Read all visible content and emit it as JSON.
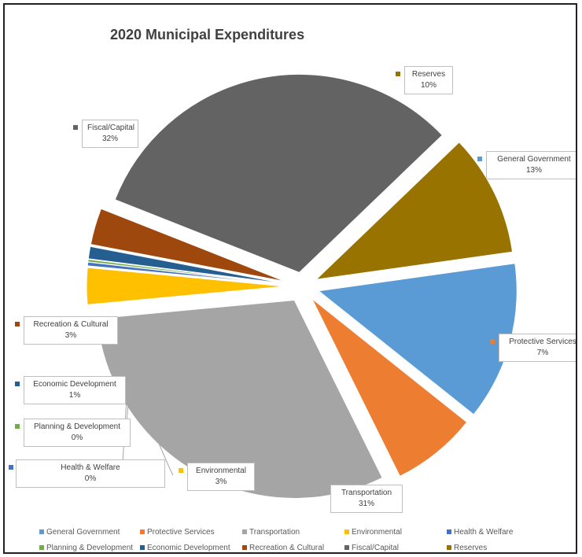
{
  "chart_data": {
    "type": "pie",
    "title": "2020 Municipal Expenditures",
    "exploded": true,
    "legend_position": "bottom",
    "slices": [
      {
        "name": "General Government",
        "label": "General Government",
        "pct_label": "13%",
        "value": 13,
        "color": "#5b9bd5"
      },
      {
        "name": "Protective Services",
        "label": "Protective Services",
        "pct_label": "7%",
        "value": 7,
        "color": "#ed7d31"
      },
      {
        "name": "Transportation",
        "label": "Transportation",
        "pct_label": "31%",
        "value": 31,
        "color": "#a5a5a5"
      },
      {
        "name": "Environmental",
        "label": "Environmental",
        "pct_label": "3%",
        "value": 3,
        "color": "#ffc000"
      },
      {
        "name": "Health & Welfare",
        "label": "Health & Welfare",
        "pct_label": "0%",
        "value": 0.3,
        "color": "#4472c4"
      },
      {
        "name": "Planning & Development",
        "label": "Planning & Development",
        "pct_label": "0%",
        "value": 0.2,
        "color": "#70ad47"
      },
      {
        "name": "Economic Development",
        "label": "Economic Development",
        "pct_label": "1%",
        "value": 1,
        "color": "#255e91"
      },
      {
        "name": "Recreation & Cultural",
        "label": "Recreation & Cultural",
        "pct_label": "3%",
        "value": 3,
        "color": "#9e480e"
      },
      {
        "name": "Fiscal/Capital",
        "label": "Fiscal/Capital",
        "pct_label": "32%",
        "value": 32,
        "color": "#636363"
      },
      {
        "name": "Reserves",
        "label": "Reserves",
        "pct_label": "10%",
        "value": 10,
        "color": "#997300"
      }
    ]
  }
}
